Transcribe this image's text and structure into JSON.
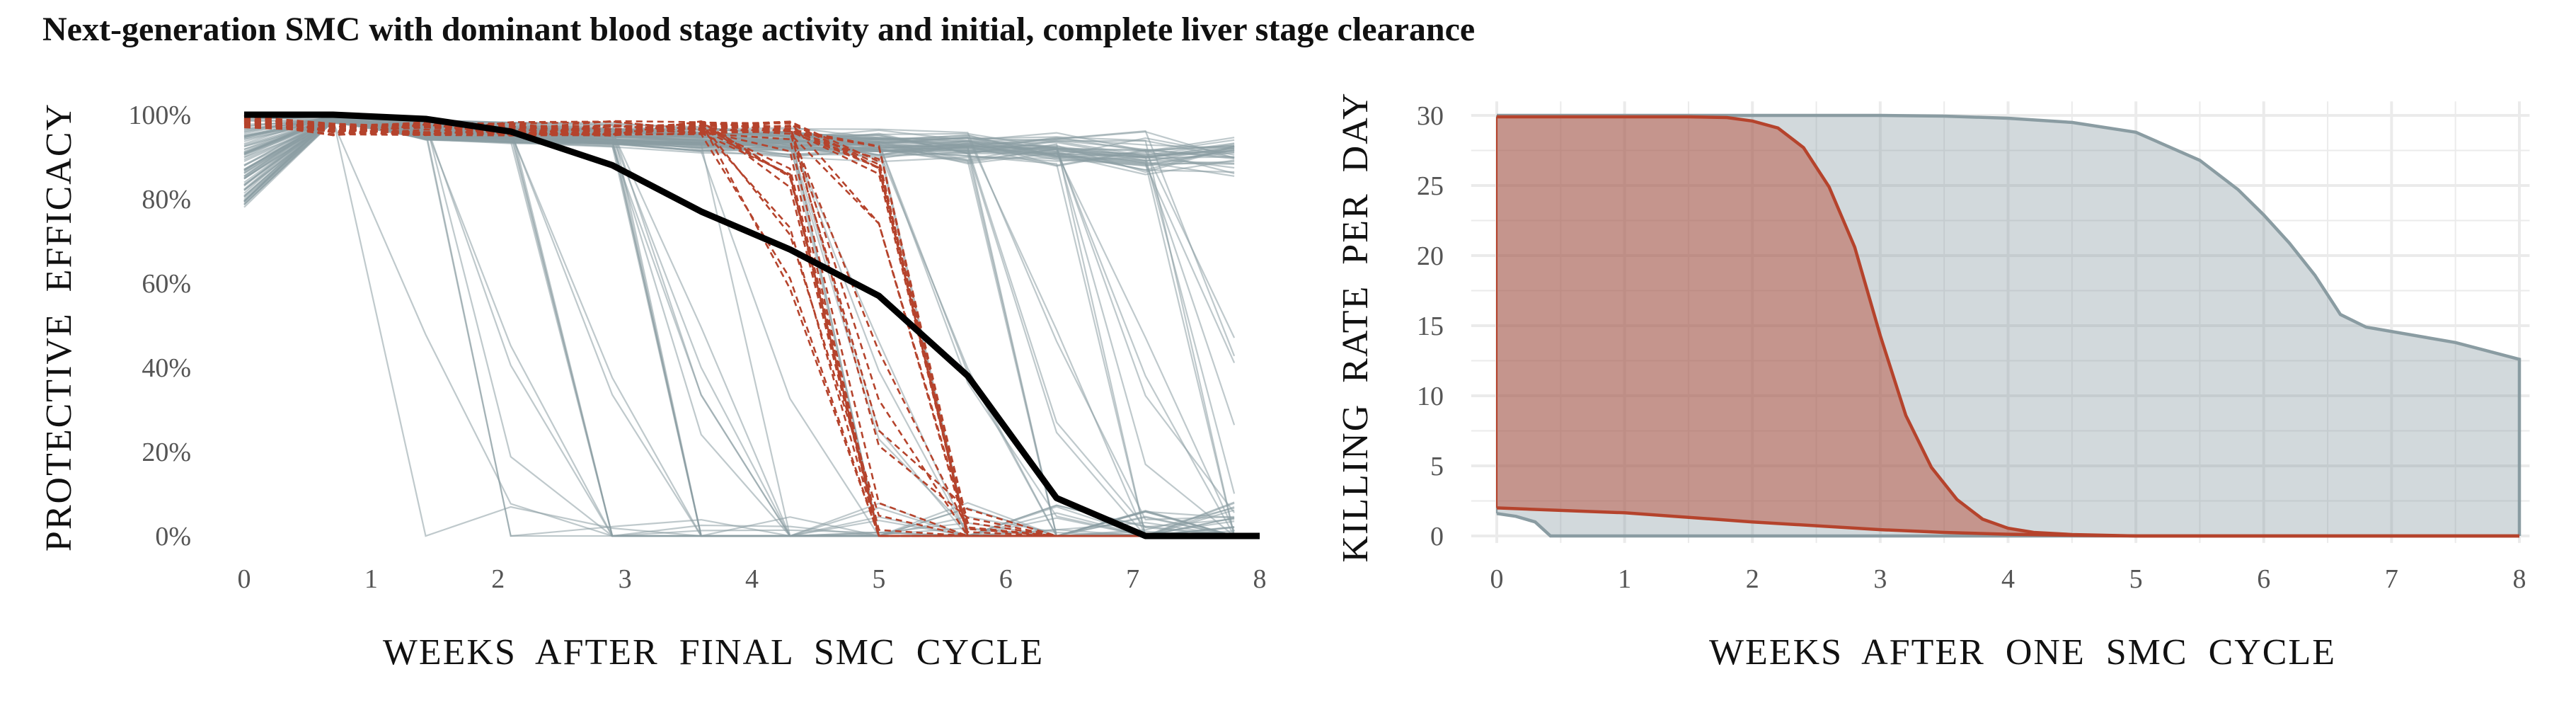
{
  "title": "Next-generation SMC with dominant blood stage activity and initial, complete liver stage clearance",
  "colors": {
    "grey": "#8a9ca2",
    "red": "#b5432c",
    "black": "#000000",
    "grid": "#ebebeb"
  },
  "chart_data": [
    {
      "type": "line",
      "xlabel": "WEEKS AFTER FINAL SMC CYCLE",
      "ylabel": "PROTECTIVE EFFICACY",
      "xlim": [
        0,
        8
      ],
      "ylim": [
        0,
        100
      ],
      "x_ticks": [
        "0",
        "1",
        "2",
        "3",
        "4",
        "5",
        "6",
        "7",
        "8"
      ],
      "y_ticks": [
        "0%",
        "20%",
        "40%",
        "60%",
        "80%",
        "100%"
      ],
      "grid": false,
      "mean_series": {
        "x": [
          0,
          0.7,
          1.43,
          2.1,
          2.9,
          3.6,
          4.3,
          5.0,
          5.7,
          6.4,
          7.1,
          7.8
        ],
        "values": [
          100,
          100,
          99,
          96,
          88,
          77,
          68,
          57,
          38,
          9,
          0,
          0
        ]
      },
      "grey_group_x": [
        0,
        0.7,
        1.43,
        2.1,
        2.9,
        3.6,
        4.3,
        5.0,
        5.7,
        6.4,
        7.1,
        7.8
      ],
      "grey_group_count": 90,
      "red_group_x": [
        0,
        0.7,
        1.43,
        2.1,
        2.9,
        3.6,
        4.3,
        5.0,
        5.7,
        6.4,
        7.1,
        7.8
      ],
      "red_group_count": 28
    },
    {
      "type": "area",
      "xlabel": "WEEKS AFTER ONE SMC CYCLE",
      "ylabel": "KILLING RATE PER DAY",
      "xlim": [
        0,
        8
      ],
      "ylim": [
        0,
        30
      ],
      "x_ticks": [
        "0",
        "1",
        "2",
        "3",
        "4",
        "5",
        "6",
        "7",
        "8"
      ],
      "y_ticks": [
        "0",
        "5",
        "10",
        "15",
        "20",
        "25",
        "30"
      ],
      "grid": true,
      "series": [
        {
          "color": "#8a9ca2",
          "upper": {
            "x": [
              0,
              1,
              2,
              3,
              3.5,
              4,
              4.5,
              5,
              5.5,
              5.8,
              6.0,
              6.2,
              6.4,
              6.6,
              6.8,
              7.5,
              8
            ],
            "values": [
              30,
              30,
              30,
              30,
              29.95,
              29.8,
              29.5,
              28.8,
              26.8,
              24.7,
              22.9,
              20.9,
              18.6,
              15.8,
              14.9,
              13.8,
              12.6
            ]
          },
          "lower": {
            "x": [
              0,
              0.15,
              0.3,
              0.42,
              0.6,
              8
            ],
            "values": [
              1.6,
              1.4,
              1.0,
              0,
              0,
              0
            ]
          }
        },
        {
          "color": "#b5432c",
          "upper": {
            "x": [
              0,
              1,
              1.5,
              1.8,
              2.0,
              2.2,
              2.4,
              2.6,
              2.8,
              3.0,
              3.2,
              3.4,
              3.6,
              3.8,
              4.0,
              4.2,
              4.5,
              5,
              8
            ],
            "values": [
              29.9,
              29.9,
              29.9,
              29.85,
              29.6,
              29.1,
              27.7,
              24.9,
              20.6,
              14.3,
              8.6,
              4.9,
              2.6,
              1.2,
              0.55,
              0.25,
              0.1,
              0,
              0
            ]
          },
          "lower": {
            "x": [
              0,
              1,
              2,
              3,
              3.5,
              4,
              4.5,
              5,
              8
            ],
            "values": [
              2.0,
              1.65,
              1.0,
              0.45,
              0.25,
              0.12,
              0.05,
              0,
              0
            ]
          }
        }
      ]
    }
  ]
}
